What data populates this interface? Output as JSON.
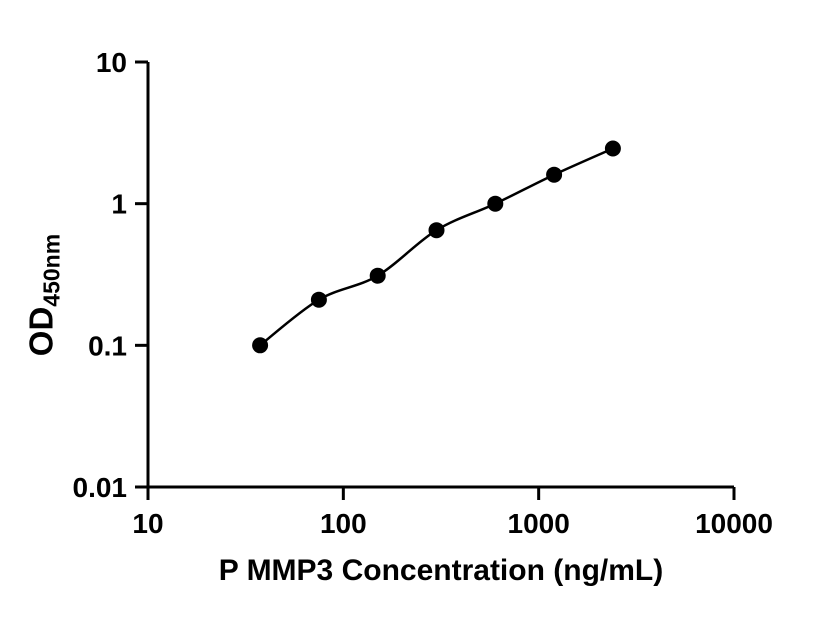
{
  "chart_data": {
    "type": "scatter",
    "title": "",
    "xlabel": "P MMP3 Concentration (ng/mL)",
    "ylabel_main": "OD",
    "ylabel_subscript": "450nm",
    "xscale": "log",
    "yscale": "log",
    "xlim": [
      10,
      10000
    ],
    "ylim": [
      0.01,
      10
    ],
    "xtick_labels": [
      "10",
      "100",
      "1000",
      "10000"
    ],
    "ytick_labels": [
      "0.01",
      "0.1",
      "1",
      "10"
    ],
    "x": [
      37.5,
      75,
      150,
      300,
      600,
      1200,
      2400
    ],
    "y": [
      0.1,
      0.21,
      0.31,
      0.65,
      1.0,
      1.6,
      2.45
    ],
    "grid": false,
    "legend": "none",
    "marker_color": "#000000",
    "line_color": "#000000",
    "axis_color": "#000000"
  }
}
